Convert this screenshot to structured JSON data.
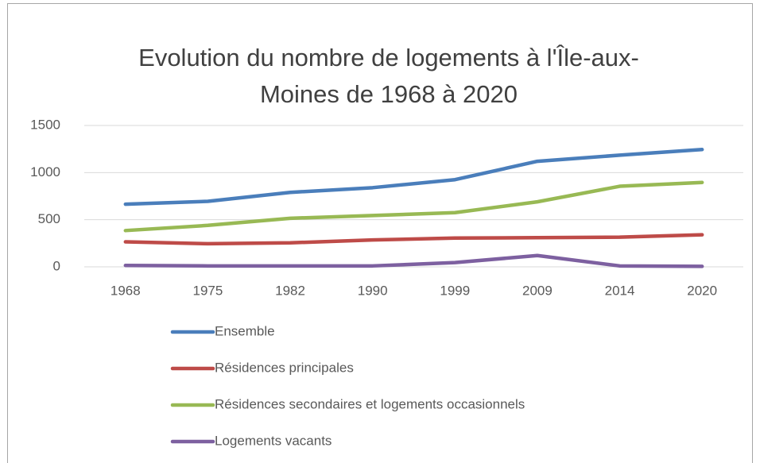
{
  "chart_data": {
    "type": "line",
    "title_lines": [
      "Evolution du nombre de logements à l'Île-aux-",
      "Moines de 1968 à 2020"
    ],
    "categories": [
      "1968",
      "1975",
      "1982",
      "1990",
      "1999",
      "2009",
      "2014",
      "2020"
    ],
    "series": [
      {
        "name": "Ensemble",
        "color": "#4a7ebb",
        "values": [
          665,
          695,
          790,
          840,
          925,
          1120,
          1185,
          1245
        ]
      },
      {
        "name": "Résidences principales",
        "color": "#be4b48",
        "values": [
          265,
          245,
          255,
          285,
          305,
          310,
          315,
          340
        ]
      },
      {
        "name": "Résidences secondaires et logements occasionnels",
        "color": "#98b954",
        "values": [
          385,
          440,
          515,
          545,
          575,
          690,
          855,
          895
        ]
      },
      {
        "name": "Logements vacants",
        "color": "#7d60a0",
        "values": [
          15,
          10,
          10,
          10,
          45,
          120,
          10,
          5
        ]
      }
    ],
    "ylim": [
      0,
      1500
    ],
    "yticks": [
      0,
      500,
      1000,
      1500
    ],
    "grid": true,
    "legend": "bottom"
  }
}
